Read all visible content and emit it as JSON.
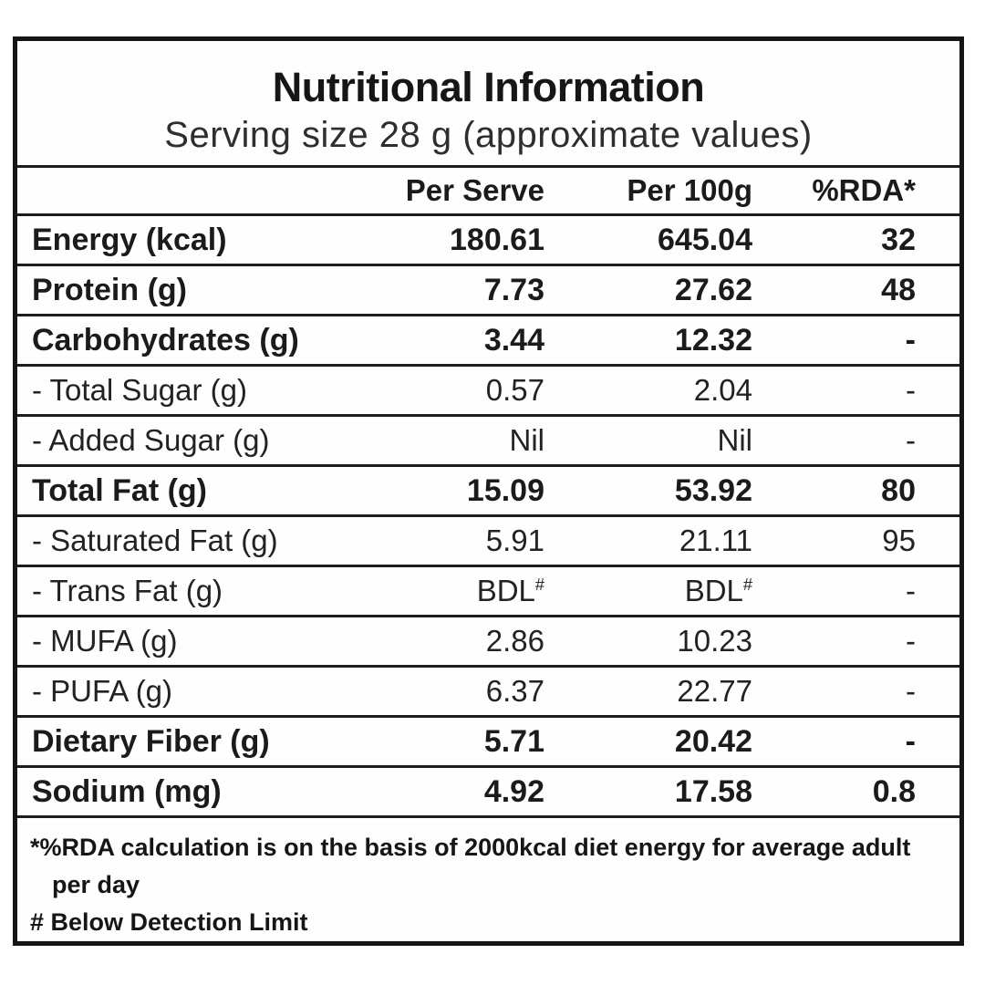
{
  "title": "Nutritional Information",
  "subtitle": "Serving size 28 g (approximate values)",
  "columns": {
    "label": "",
    "per_serve": "Per Serve",
    "per_100g": "Per 100g",
    "rda": "%RDA*"
  },
  "rows": [
    {
      "label": "Energy (kcal)",
      "per_serve": "180.61",
      "per_100g": "645.04",
      "rda": "32",
      "bold": true
    },
    {
      "label": "Protein (g)",
      "per_serve": "7.73",
      "per_100g": "27.62",
      "rda": "48",
      "bold": true
    },
    {
      "label": "Carbohydrates (g)",
      "per_serve": "3.44",
      "per_100g": "12.32",
      "rda": "-",
      "bold": true
    },
    {
      "label": "- Total Sugar (g)",
      "per_serve": "0.57",
      "per_100g": "2.04",
      "rda": "-",
      "bold": false
    },
    {
      "label": "- Added Sugar (g)",
      "per_serve": "Nil",
      "per_100g": "Nil",
      "rda": "-",
      "bold": false
    },
    {
      "label": "Total Fat (g)",
      "per_serve": "15.09",
      "per_100g": "53.92",
      "rda": "80",
      "bold": true
    },
    {
      "label": "- Saturated Fat (g)",
      "per_serve": "5.91",
      "per_100g": "21.11",
      "rda": "95",
      "bold": false
    },
    {
      "label": "- Trans Fat (g)",
      "per_serve": "BDL#",
      "per_100g": "BDL#",
      "rda": "-",
      "bold": false
    },
    {
      "label": "- MUFA (g)",
      "per_serve": "2.86",
      "per_100g": "10.23",
      "rda": "-",
      "bold": false
    },
    {
      "label": "- PUFA (g)",
      "per_serve": "6.37",
      "per_100g": "22.77",
      "rda": "-",
      "bold": false
    },
    {
      "label": "Dietary Fiber (g)",
      "per_serve": "5.71",
      "per_100g": "20.42",
      "rda": "-",
      "bold": true
    },
    {
      "label": "Sodium (mg)",
      "per_serve": "4.92",
      "per_100g": "17.58",
      "rda": "0.8",
      "bold": true
    }
  ],
  "footnotes": {
    "rda": "*%RDA calculation is on the basis of 2000kcal diet energy for average adult per day",
    "bdl": "# Below Detection Limit"
  },
  "colors": {
    "border": "#161616",
    "text": "#1b1b1b",
    "background": "#ffffff"
  }
}
